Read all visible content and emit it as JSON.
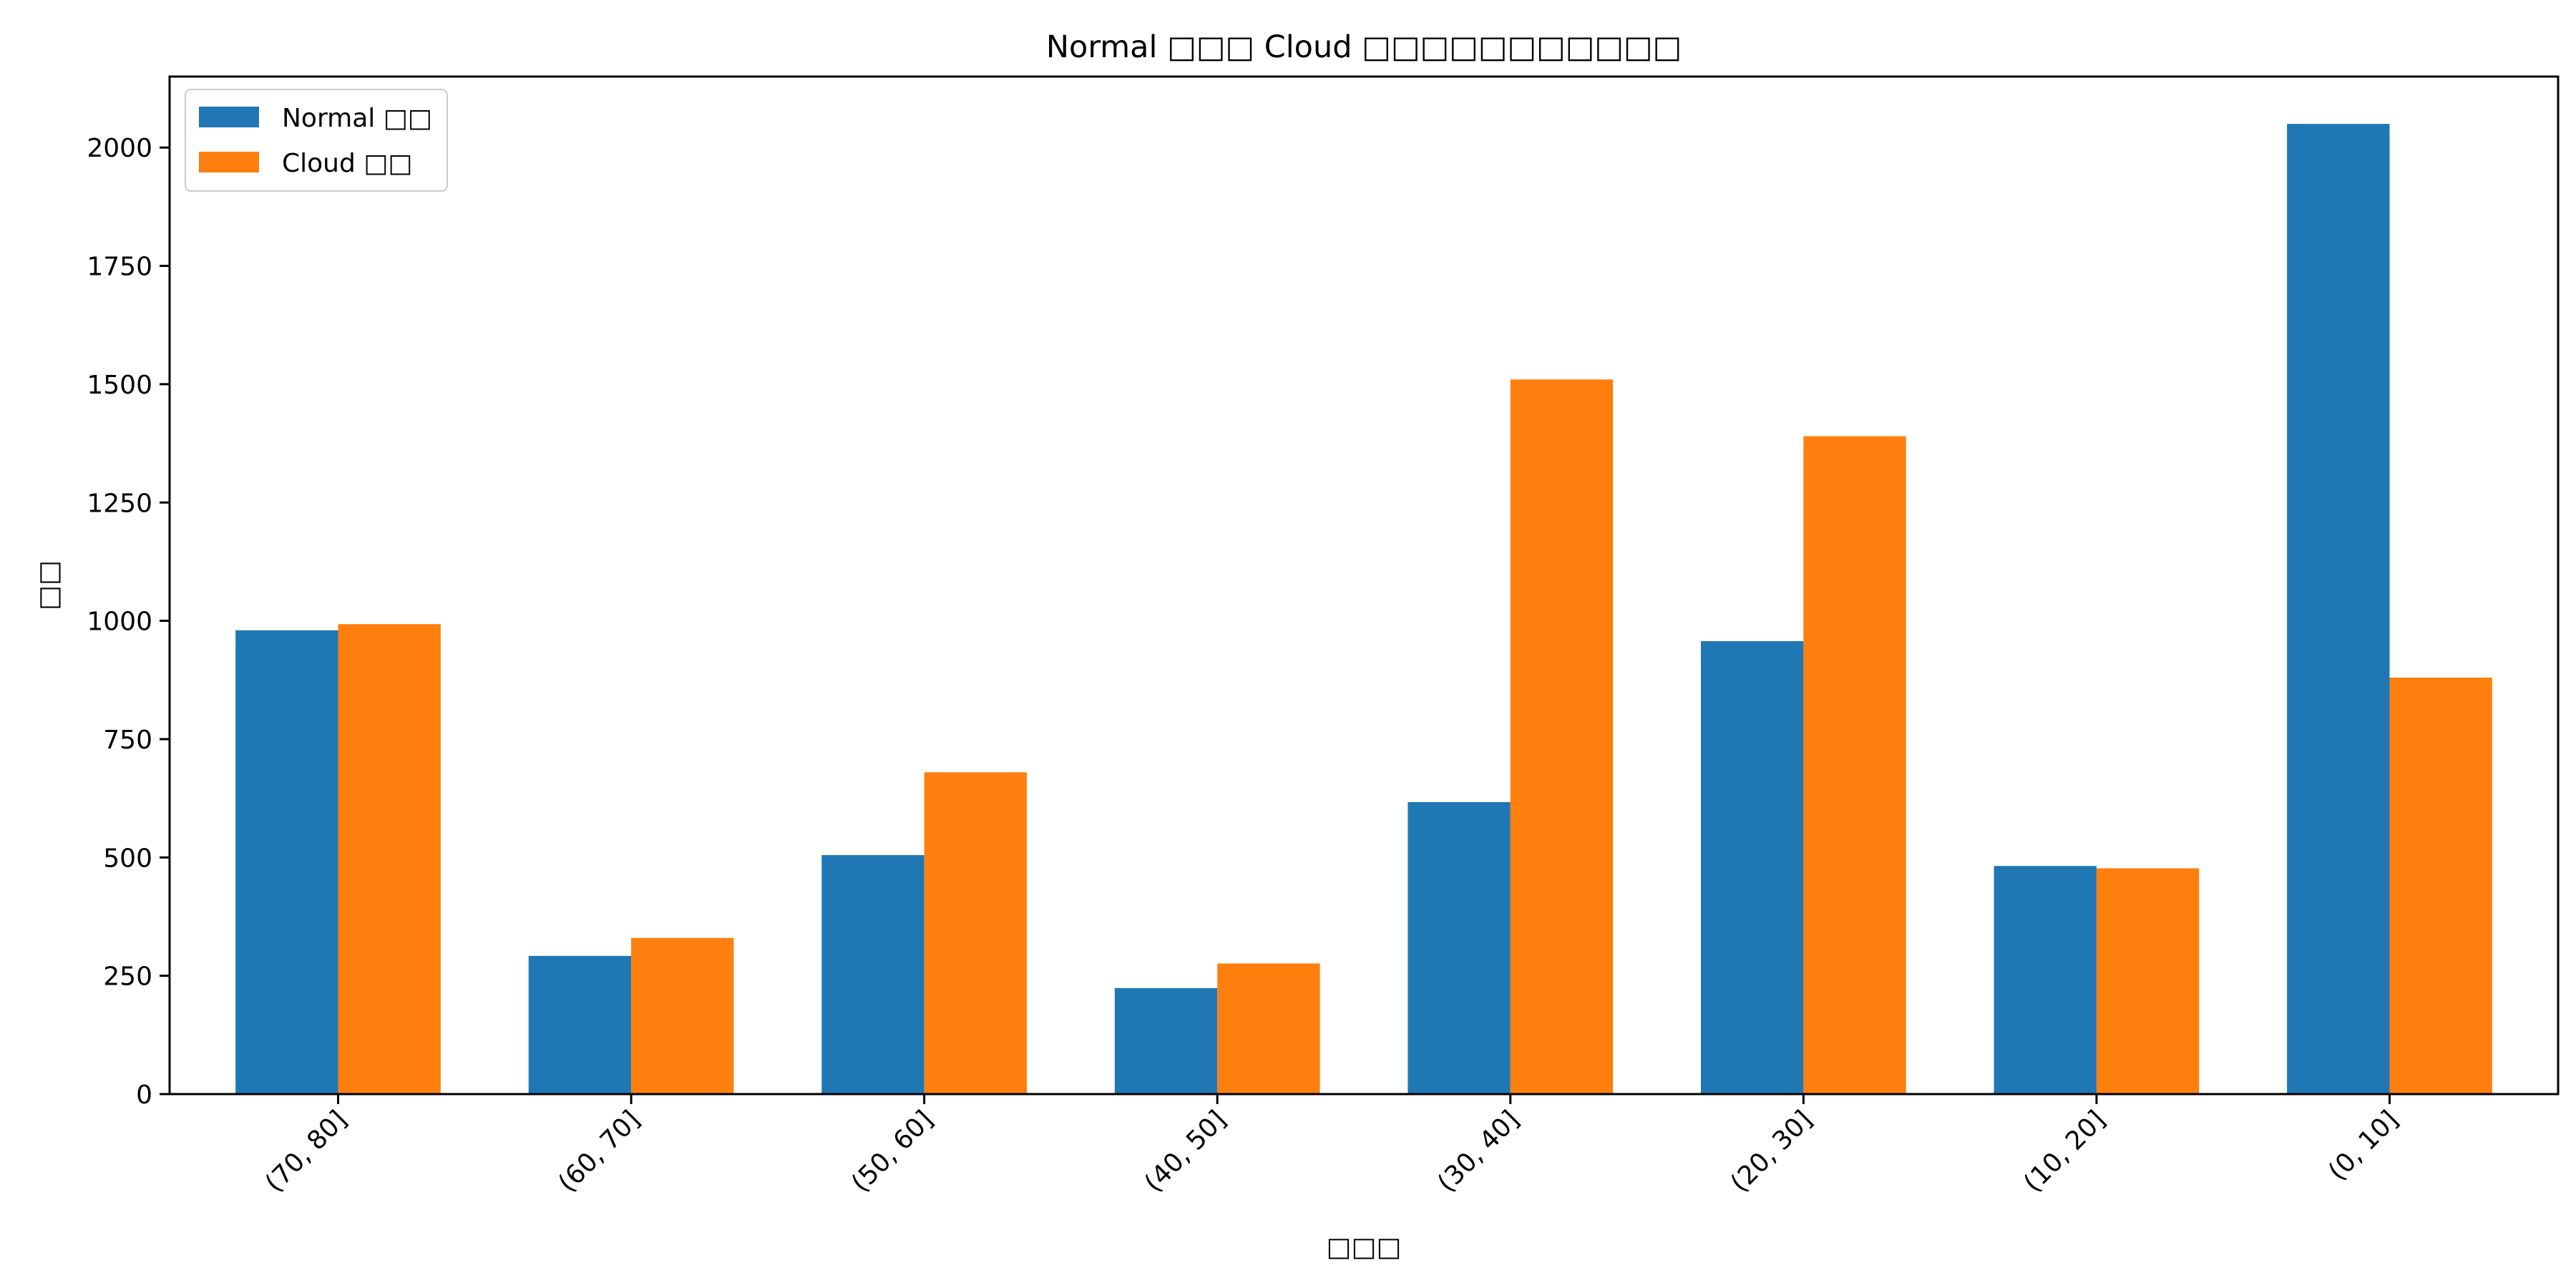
{
  "chart_data": {
    "type": "bar",
    "title": "Normal □□□ Cloud □□□□□□□□□□□",
    "xlabel": "□□□",
    "ylabel": "□□",
    "categories": [
      "(70, 80]",
      "(60, 70]",
      "(50, 60]",
      "(40, 50]",
      "(30, 40]",
      "(20, 30]",
      "(10, 20]",
      "(0, 10]"
    ],
    "series": [
      {
        "name": "Normal □□",
        "color": "#1f77b4",
        "values": [
          980,
          292,
          505,
          224,
          617,
          957,
          482,
          2050
        ]
      },
      {
        "name": "Cloud □□",
        "color": "#ff7f0e",
        "values": [
          993,
          330,
          680,
          276,
          1510,
          1390,
          477,
          880
        ]
      }
    ],
    "ylim": [
      0,
      2150
    ],
    "yticks": [
      0,
      250,
      500,
      750,
      1000,
      1250,
      1500,
      1750,
      2000
    ],
    "grid": false,
    "legend_position": "upper-left",
    "x_tick_rotation_deg": 45
  }
}
